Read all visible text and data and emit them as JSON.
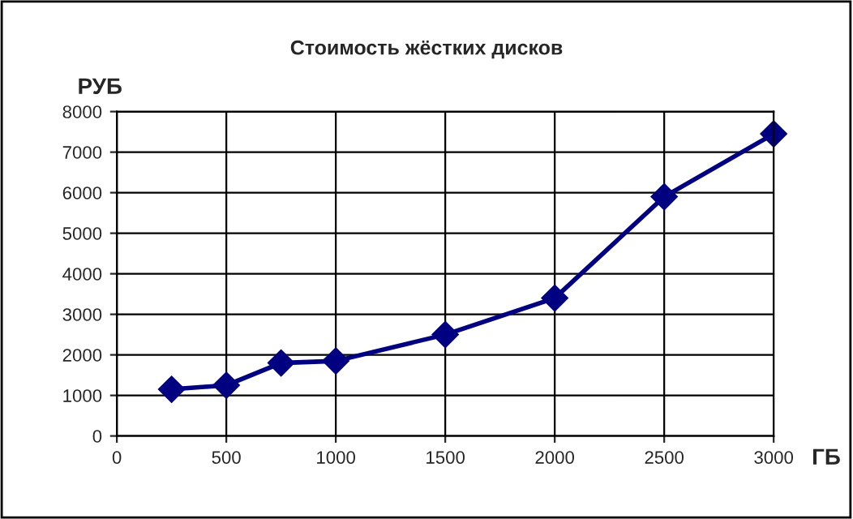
{
  "chart_data": {
    "type": "line",
    "title": "Стоимость жёстких дисков",
    "xlabel": "ГБ",
    "ylabel": "РУБ",
    "x": [
      250,
      500,
      750,
      1000,
      1500,
      2000,
      2500,
      3000
    ],
    "series": [
      {
        "color": "#000080",
        "values": [
          1150,
          1250,
          1800,
          1850,
          2500,
          3400,
          5900,
          7450
        ]
      }
    ],
    "xlim": [
      0,
      3000
    ],
    "xticks": [
      0,
      500,
      1000,
      1500,
      2000,
      2500,
      3000
    ],
    "ylim": [
      0,
      8000
    ],
    "yticks": [
      0,
      1000,
      2000,
      3000,
      4000,
      5000,
      6000,
      7000,
      8000
    ],
    "grid": true,
    "marker": "diamond",
    "line_style": "solid"
  }
}
